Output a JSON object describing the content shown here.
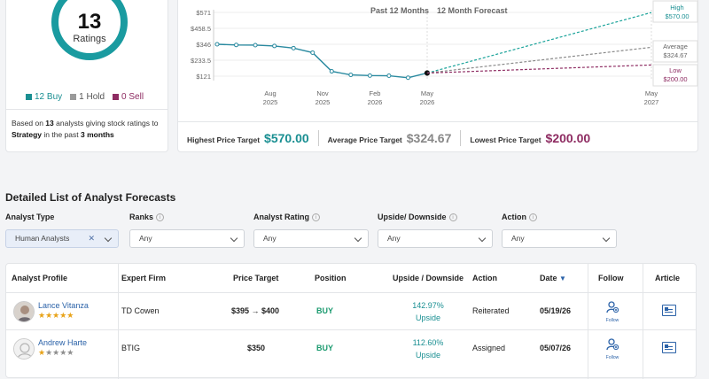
{
  "ratings": {
    "count": "13",
    "label": "Ratings",
    "legend": [
      {
        "label": "12 Buy",
        "color": "#1a8f92"
      },
      {
        "label": "1 Hold",
        "color": "#9a9a9a"
      },
      {
        "label": "0 Sell",
        "color": "#8e2c62"
      }
    ],
    "based_on": {
      "prefix": "Based on",
      "count": "13",
      "mid": "analysts giving stock ratings to",
      "strategy": "Strategy",
      "in_the_past": "in the past",
      "period": "3 months"
    }
  },
  "chart": {
    "header_past": "Past 12 Months",
    "header_forecast": "12 Month Forecast",
    "y_labels": [
      "$571",
      "$458.5",
      "$346",
      "$233.5",
      "$121"
    ],
    "x_labels": [
      {
        "m": "Aug",
        "y": "2025"
      },
      {
        "m": "Nov",
        "y": "2025"
      },
      {
        "m": "Feb",
        "y": "2026"
      },
      {
        "m": "May",
        "y": "2026"
      },
      {
        "m": "May",
        "y": "2027"
      }
    ],
    "callouts": {
      "high_label": "High",
      "high_value": "$570.00",
      "avg_label": "Average",
      "avg_value": "$324.67",
      "low_label": "Low",
      "low_value": "$200.00"
    },
    "colors": {
      "history": "#2a8aa0",
      "high": "#1aa39a",
      "avg": "#8a8a8a",
      "low": "#8e2c62"
    }
  },
  "chart_data": {
    "type": "line",
    "ylim": [
      121,
      571
    ],
    "grid": true,
    "history": [
      {
        "x": "Jun 2025",
        "y": 346
      },
      {
        "x": "Jul 2025",
        "y": 341
      },
      {
        "x": "Aug 2025",
        "y": 340
      },
      {
        "x": "Sep 2025",
        "y": 334
      },
      {
        "x": "Oct 2025",
        "y": 319
      },
      {
        "x": "Nov 2025",
        "y": 287
      },
      {
        "x": "Dec 2025",
        "y": 155
      },
      {
        "x": "Jan 2026",
        "y": 130
      },
      {
        "x": "Feb 2026",
        "y": 125
      },
      {
        "x": "Mar 2026",
        "y": 124
      },
      {
        "x": "Apr 2026",
        "y": 110
      },
      {
        "x": "May 2026",
        "y": 143
      }
    ],
    "forecast_start": {
      "x": "May 2026",
      "y": 143
    },
    "forecast_end_x": "May 2027",
    "series": [
      {
        "name": "High",
        "values": [
          143,
          570
        ]
      },
      {
        "name": "Average",
        "values": [
          143,
          324.67
        ]
      },
      {
        "name": "Low",
        "values": [
          143,
          200
        ]
      }
    ]
  },
  "targets": {
    "high_label": "Highest Price Target",
    "high_value": "$570.00",
    "avg_label": "Average Price Target",
    "avg_value": "$324.67",
    "low_label": "Lowest Price Target",
    "low_value": "$200.00"
  },
  "forecasts": {
    "title": "Detailed List of Analyst Forecasts",
    "filters": [
      {
        "label": "Analyst Type",
        "value": "Human Analysts",
        "info": false
      },
      {
        "label": "Ranks",
        "value": "Any",
        "info": true
      },
      {
        "label": "Analyst Rating",
        "value": "Any",
        "info": true
      },
      {
        "label": "Upside/ Downside",
        "value": "Any",
        "info": true
      },
      {
        "label": "Action",
        "value": "Any",
        "info": true
      }
    ],
    "columns": [
      "Analyst Profile",
      "Expert Firm",
      "Price Target",
      "Position",
      "Upside / Downside",
      "Action",
      "Date",
      "Follow",
      "Article"
    ],
    "follow_label": "Follow",
    "rows": [
      {
        "name": "Lance Vitanza",
        "stars": 5,
        "firm": "TD Cowen",
        "target": "$395 → $400",
        "position": "BUY",
        "upside": "142.97%",
        "upside_label": "Upside",
        "action": "Reiterated",
        "date": "05/19/26"
      },
      {
        "name": "Andrew Harte",
        "stars": 1,
        "firm": "BTIG",
        "target": "$350",
        "position": "BUY",
        "upside": "112.60%",
        "upside_label": "Upside",
        "action": "Assigned",
        "date": "05/07/26"
      }
    ]
  }
}
